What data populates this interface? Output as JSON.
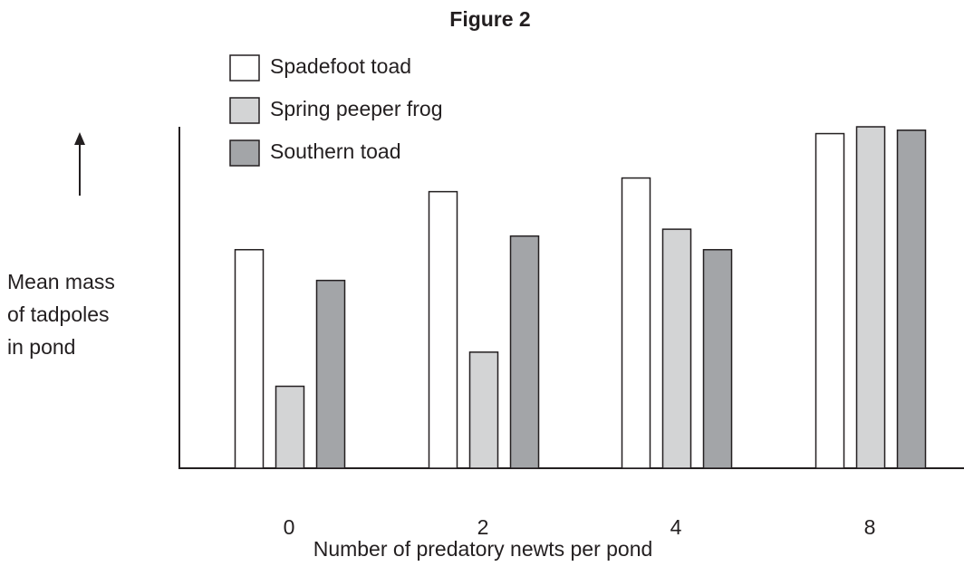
{
  "chart_data": {
    "type": "bar",
    "title": "Figure 2",
    "ylabel": [
      "Mean mass",
      "of tadpoles",
      "in pond"
    ],
    "xlabel": "Number of predatory newts per pond",
    "categories": [
      "0",
      "2",
      "4",
      "8"
    ],
    "series": [
      {
        "name": "Spadefoot toad",
        "color": "#ffffff",
        "values": [
          64,
          81,
          85,
          98
        ]
      },
      {
        "name": "Spring peeper frog",
        "color": "#d3d4d5",
        "values": [
          24,
          34,
          70,
          100
        ]
      },
      {
        "name": "Southern toad",
        "color": "#a3a5a8",
        "values": [
          55,
          68,
          64,
          99
        ]
      }
    ],
    "ylim": [
      0,
      100
    ]
  }
}
